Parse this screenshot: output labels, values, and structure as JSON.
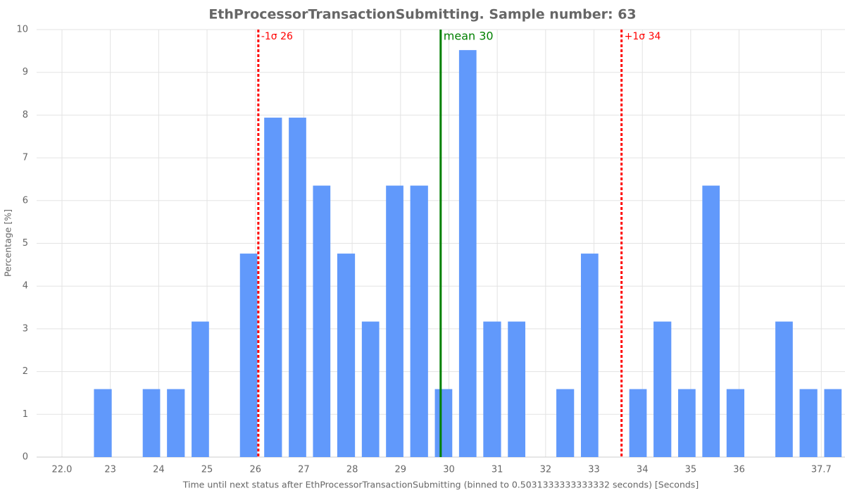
{
  "chart_data": {
    "type": "histogram",
    "title": "EthProcessorTransactionSubmitting. Sample number: 63",
    "x_label": "Time until next status after EthProcessorTransactionSubmitting (binned to 0.5031333333333332 seconds) [Seconds]",
    "y_label": "Percentage [%]",
    "bins": [
      22.09,
      22.59,
      23.1,
      23.6,
      24.1,
      24.61,
      25.11,
      25.61,
      26.11,
      26.62,
      27.12,
      27.62,
      28.13,
      28.63,
      29.13,
      29.64,
      30.14,
      30.64,
      31.15,
      31.65,
      32.15,
      32.66,
      33.16,
      33.66,
      34.16,
      34.67,
      35.17,
      35.67,
      36.18,
      36.68,
      37.18,
      37.69,
      38.19
    ],
    "values": [
      0,
      1.59,
      0,
      1.59,
      1.59,
      3.17,
      0,
      4.76,
      7.94,
      7.94,
      6.35,
      4.76,
      3.17,
      6.35,
      6.35,
      1.59,
      9.52,
      3.17,
      3.17,
      0,
      1.59,
      4.76,
      0,
      1.59,
      3.17,
      1.59,
      6.35,
      1.59,
      0,
      3.17,
      1.59,
      1.59
    ],
    "color": "#6199fb",
    "xlim": [
      21.476,
      38.19
    ],
    "xticks": [
      {
        "value": 22,
        "label": "22.0"
      },
      23,
      24,
      25,
      26,
      27,
      28,
      29,
      30,
      31,
      32,
      33,
      34,
      35,
      36,
      37.7
    ],
    "ylim": [
      0,
      10
    ],
    "yticks": [
      0,
      1,
      2,
      3,
      4,
      5,
      6,
      7,
      8,
      9,
      10
    ],
    "grid": true,
    "annotations": [
      {
        "label": "-1σ 26",
        "x": 26.06,
        "color": "#ff0000",
        "style": "dotted"
      },
      {
        "label": "mean 30",
        "x": 29.83,
        "color": "#008000",
        "style": "solid"
      },
      {
        "label": "+1σ 34",
        "x": 33.57,
        "color": "#ff0000",
        "style": "dotted"
      }
    ]
  }
}
